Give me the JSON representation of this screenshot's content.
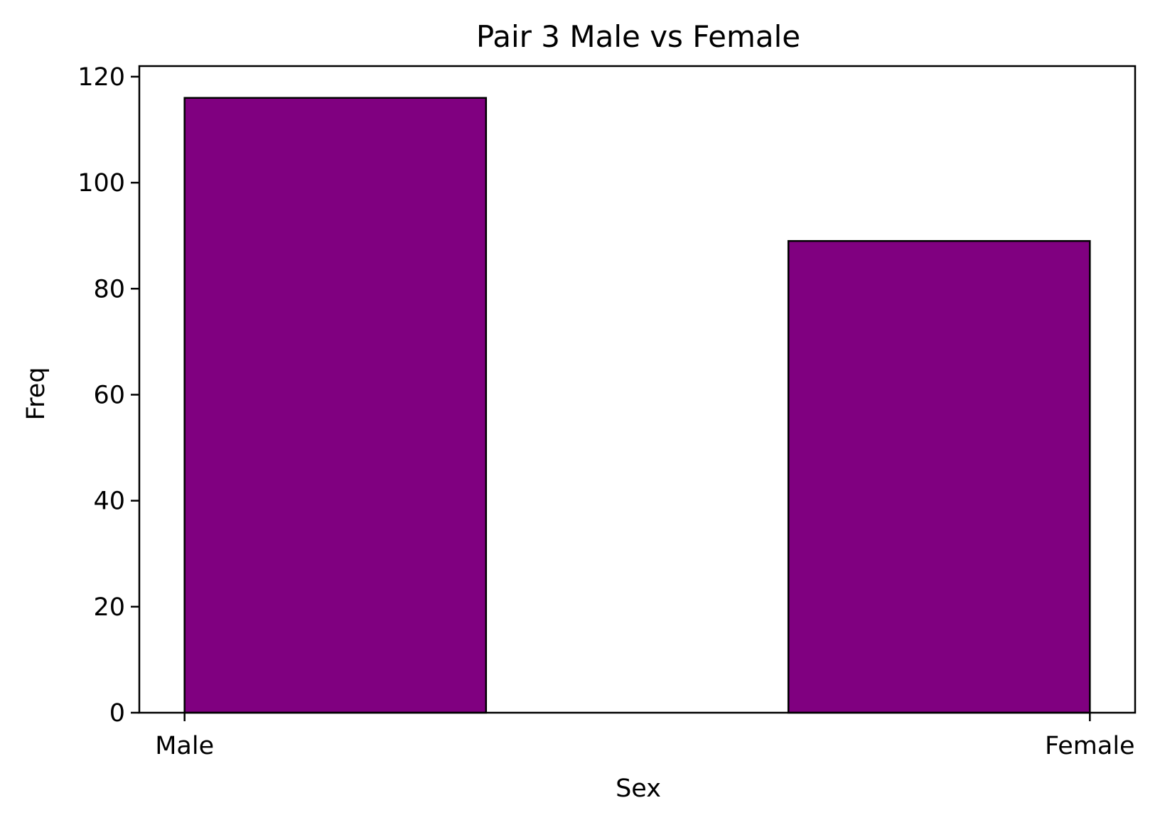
{
  "chart_data": {
    "type": "bar",
    "title": "Pair 3 Male vs Female",
    "xlabel": "Sex",
    "ylabel": "Freq",
    "categories": [
      "Male",
      "Female"
    ],
    "values": [
      116,
      89
    ],
    "ylim": [
      0,
      122
    ],
    "yticks": [
      0,
      20,
      40,
      60,
      80,
      100,
      120
    ],
    "ytick_labels": [
      "0",
      "20",
      "40",
      "60",
      "80",
      "100",
      "120"
    ],
    "grid": false,
    "legend": "none",
    "colors": {
      "bar_fill": "#800080",
      "bar_edge": "#000000",
      "axes": "#000000",
      "background": "#ffffff"
    }
  }
}
